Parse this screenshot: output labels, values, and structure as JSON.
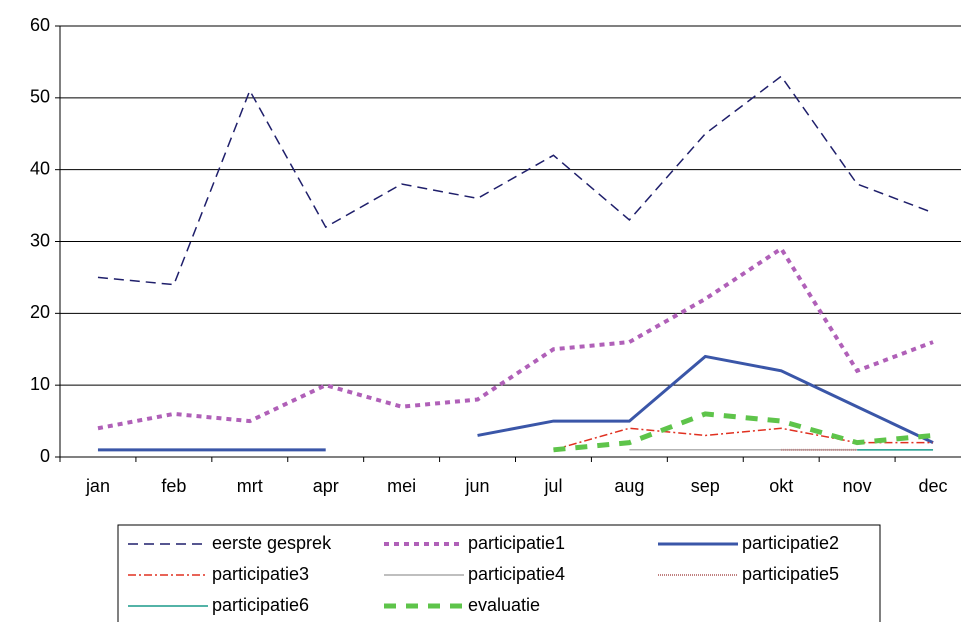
{
  "chart_data": {
    "type": "line",
    "categories": [
      "jan",
      "feb",
      "mrt",
      "apr",
      "mei",
      "jun",
      "jul",
      "aug",
      "sep",
      "okt",
      "nov",
      "dec"
    ],
    "series": [
      {
        "name": "eerste gesprek",
        "color": "#1f1f6b",
        "values": [
          25,
          24,
          51,
          32,
          38,
          36,
          42,
          33,
          45,
          53,
          38,
          34
        ]
      },
      {
        "name": "participatie1",
        "color": "#b060b8",
        "values": [
          4,
          6,
          5,
          10,
          7,
          8,
          15,
          16,
          22,
          29,
          12,
          16
        ]
      },
      {
        "name": "participatie2",
        "color": "#3a56a8",
        "values": [
          1,
          1,
          1,
          1,
          null,
          3,
          5,
          5,
          14,
          12,
          7,
          2
        ]
      },
      {
        "name": "participatie3",
        "color": "#e03020",
        "values": [
          null,
          null,
          null,
          null,
          null,
          null,
          1,
          4,
          3,
          4,
          2,
          2
        ]
      },
      {
        "name": "participatie4",
        "color": "#999999",
        "values": [
          null,
          null,
          null,
          null,
          null,
          null,
          null,
          1,
          1,
          1,
          1,
          null
        ]
      },
      {
        "name": "participatie5",
        "color": "#c08080",
        "values": [
          null,
          null,
          null,
          null,
          null,
          null,
          null,
          null,
          null,
          1,
          1,
          null
        ]
      },
      {
        "name": "participatie6",
        "color": "#1a9a8a",
        "values": [
          null,
          null,
          null,
          null,
          null,
          null,
          null,
          null,
          null,
          null,
          1,
          1
        ]
      },
      {
        "name": "evaluatie",
        "color": "#5ec44a",
        "values": [
          null,
          null,
          null,
          null,
          null,
          null,
          1,
          2,
          6,
          5,
          2,
          3
        ]
      }
    ],
    "ylim": [
      0,
      60
    ],
    "yticks": [
      0,
      10,
      20,
      30,
      40,
      50,
      60
    ],
    "grid": true
  }
}
